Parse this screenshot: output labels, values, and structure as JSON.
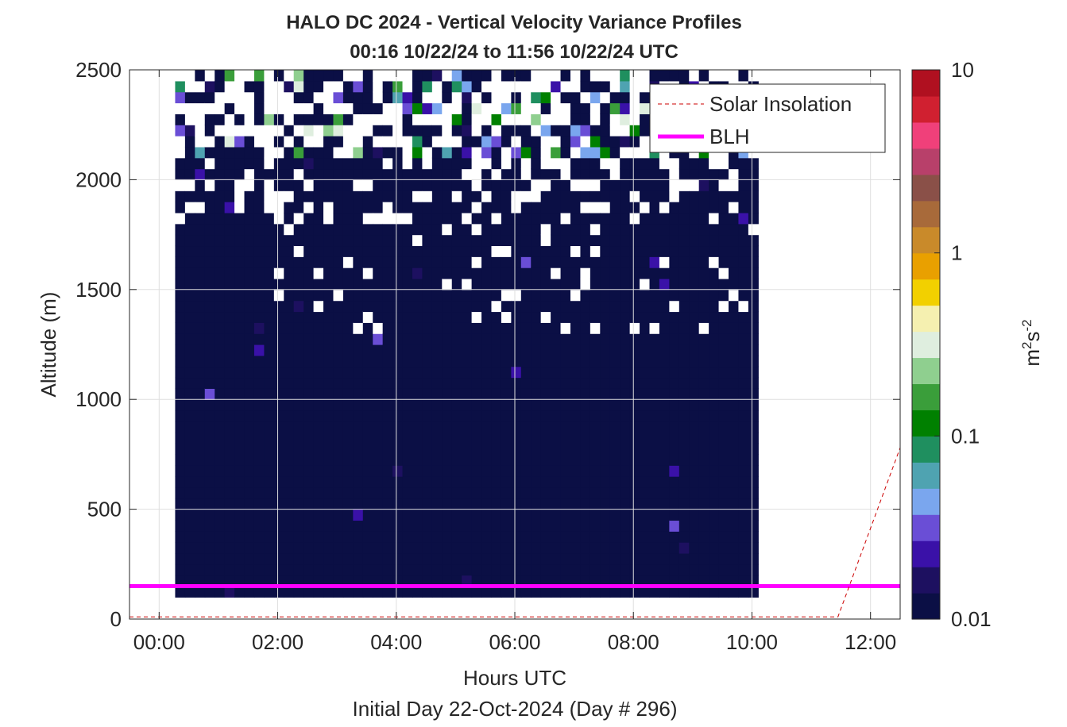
{
  "chart_data": {
    "type": "heatmap",
    "title": "HALO DC 2024 - Vertical Velocity Variance Profiles",
    "subtitle": "00:16 10/22/24 to 11:56 10/22/24  UTC",
    "xlabel": "Hours UTC",
    "ylabel": "Altitude (m)",
    "footer": "Initial Day 22-Oct-2024 (Day # 296)",
    "xlim": [
      -0.5,
      12.5
    ],
    "ylim": [
      0,
      2500
    ],
    "x_ticks": [
      0,
      2,
      4,
      6,
      8,
      10,
      12
    ],
    "x_tick_labels": [
      "00:00",
      "02:00",
      "04:00",
      "06:00",
      "08:00",
      "10:00",
      "12:00"
    ],
    "y_ticks": [
      0,
      500,
      1000,
      1500,
      2000,
      2500
    ],
    "y_tick_labels": [
      "0",
      "500",
      "1000",
      "1500",
      "2000",
      "2500"
    ],
    "grid": true,
    "colorbar": {
      "label_base": "m",
      "label_sup1": "2",
      "label_mid": "s",
      "label_sup2": "-2",
      "scale": "log",
      "range": [
        0.01,
        10
      ],
      "ticks": [
        0.01,
        0.1,
        1,
        10
      ],
      "tick_labels": [
        "0.01",
        "0.1",
        "1",
        "10"
      ],
      "colors": [
        "#0b0f45",
        "#1d1060",
        "#3a11a8",
        "#6a4ed6",
        "#7aa6ee",
        "#4fa3b1",
        "#1f8f5f",
        "#008000",
        "#3a9e3a",
        "#8fcf8f",
        "#dfeedf",
        "#f5f0b0",
        "#f2d000",
        "#e9a000",
        "#c98a2a",
        "#a86a3a",
        "#8a5048",
        "#b8406a",
        "#f0407a",
        "#d02030",
        "#b01020"
      ]
    },
    "legend": {
      "placement": "top-right",
      "entries": [
        {
          "name": "Solar Insolation",
          "color": "#cc0000",
          "style": "dashed"
        },
        {
          "name": "BLH",
          "color": "#ff00ff",
          "style": "solid"
        }
      ]
    },
    "heatmap": {
      "x_start": 0.27,
      "x_step": 0.1667,
      "n_columns": 59,
      "y_start": 100,
      "y_step": 50,
      "n_rows": 48,
      "background_value": 0.01,
      "missing_color": "#ffffff"
    },
    "series": [
      {
        "name": "BLH",
        "x": [
          -0.5,
          0.27,
          11.93,
          12.5
        ],
        "y": [
          150,
          150,
          150,
          150
        ]
      },
      {
        "name": "Solar Insolation",
        "x": [
          -0.5,
          11.45,
          12.5
        ],
        "y": [
          10,
          10,
          780
        ]
      }
    ]
  }
}
